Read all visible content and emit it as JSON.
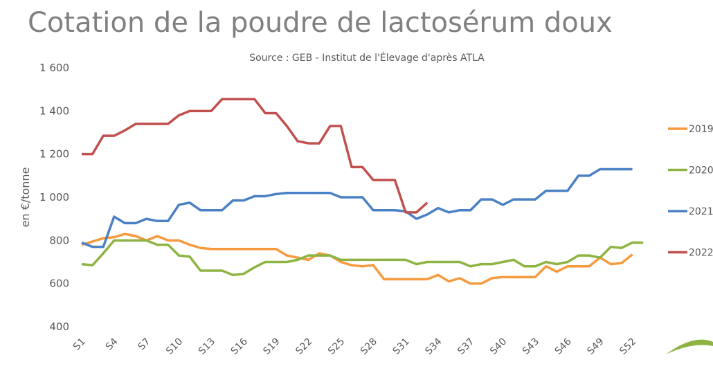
{
  "chart_data": {
    "type": "line",
    "title": "Cotation de la poudre de lactosérum doux",
    "subtitle": "Source : GEB - Institut de l'Élevage d'après ATLA",
    "y_label": "en €/tonne",
    "categories": [
      "S1",
      null,
      null,
      "S4",
      null,
      null,
      "S7",
      null,
      null,
      "S10",
      null,
      null,
      "S13",
      null,
      null,
      "S16",
      null,
      null,
      "S19",
      null,
      null,
      "S22",
      null,
      null,
      "S25",
      null,
      null,
      "S28",
      null,
      null,
      "S31",
      null,
      null,
      "S34",
      null,
      null,
      "S37",
      null,
      null,
      "S40",
      null,
      null,
      "S43",
      null,
      null,
      "S46",
      null,
      null,
      "S49",
      null,
      null,
      "S52",
      null
    ],
    "series": [
      {
        "name": "2019",
        "color": "#f79a3e",
        "values": [
          780,
          795,
          810,
          815,
          830,
          820,
          800,
          820,
          800,
          800,
          780,
          765,
          760,
          760,
          760,
          760,
          760,
          760,
          760,
          730,
          720,
          710,
          740,
          730,
          700,
          685,
          680,
          685,
          620,
          620,
          620,
          620,
          620,
          640,
          610,
          625,
          600,
          600,
          625,
          630,
          630,
          630,
          630,
          680,
          655,
          680,
          680,
          680,
          720,
          690,
          695,
          735,
          null
        ]
      },
      {
        "name": "2020",
        "color": "#8db443",
        "values": [
          690,
          685,
          740,
          800,
          800,
          800,
          800,
          780,
          780,
          730,
          725,
          660,
          660,
          660,
          640,
          645,
          675,
          700,
          700,
          700,
          710,
          730,
          730,
          730,
          710,
          710,
          710,
          710,
          710,
          710,
          710,
          690,
          700,
          700,
          700,
          700,
          680,
          690,
          690,
          700,
          710,
          680,
          680,
          700,
          690,
          700,
          730,
          730,
          720,
          770,
          765,
          790,
          790
        ]
      },
      {
        "name": "2021",
        "color": "#4a80c4",
        "values": [
          790,
          770,
          770,
          910,
          880,
          880,
          900,
          890,
          890,
          965,
          975,
          940,
          940,
          940,
          985,
          985,
          1005,
          1005,
          1015,
          1020,
          1020,
          1020,
          1020,
          1020,
          1000,
          1000,
          1000,
          940,
          940,
          940,
          935,
          900,
          920,
          950,
          930,
          940,
          940,
          990,
          990,
          965,
          990,
          990,
          990,
          1030,
          1030,
          1030,
          1100,
          1100,
          1130,
          1130,
          1130,
          1130,
          null
        ]
      },
      {
        "name": "2022",
        "color": "#c0504d",
        "values": [
          1200,
          1200,
          1285,
          1285,
          1310,
          1340,
          1340,
          1340,
          1340,
          1380,
          1400,
          1400,
          1400,
          1455,
          1455,
          1455,
          1455,
          1390,
          1390,
          1330,
          1260,
          1250,
          1250,
          1330,
          1330,
          1140,
          1140,
          1080,
          1080,
          1080,
          930,
          930,
          975,
          null,
          null,
          null,
          null,
          null,
          null,
          null,
          null,
          null,
          null,
          null,
          null,
          null,
          null,
          null,
          null,
          null,
          null,
          null,
          null
        ]
      }
    ],
    "ylim": [
      400,
      1600
    ],
    "yticks": [
      400,
      600,
      800,
      {
        "value": 1000,
        "label": "1 000"
      },
      {
        "value": 1200,
        "label": "1 200"
      },
      {
        "value": 1400,
        "label": "1 400"
      },
      {
        "value": 1600,
        "label": "1 600"
      }
    ],
    "grid": false
  }
}
